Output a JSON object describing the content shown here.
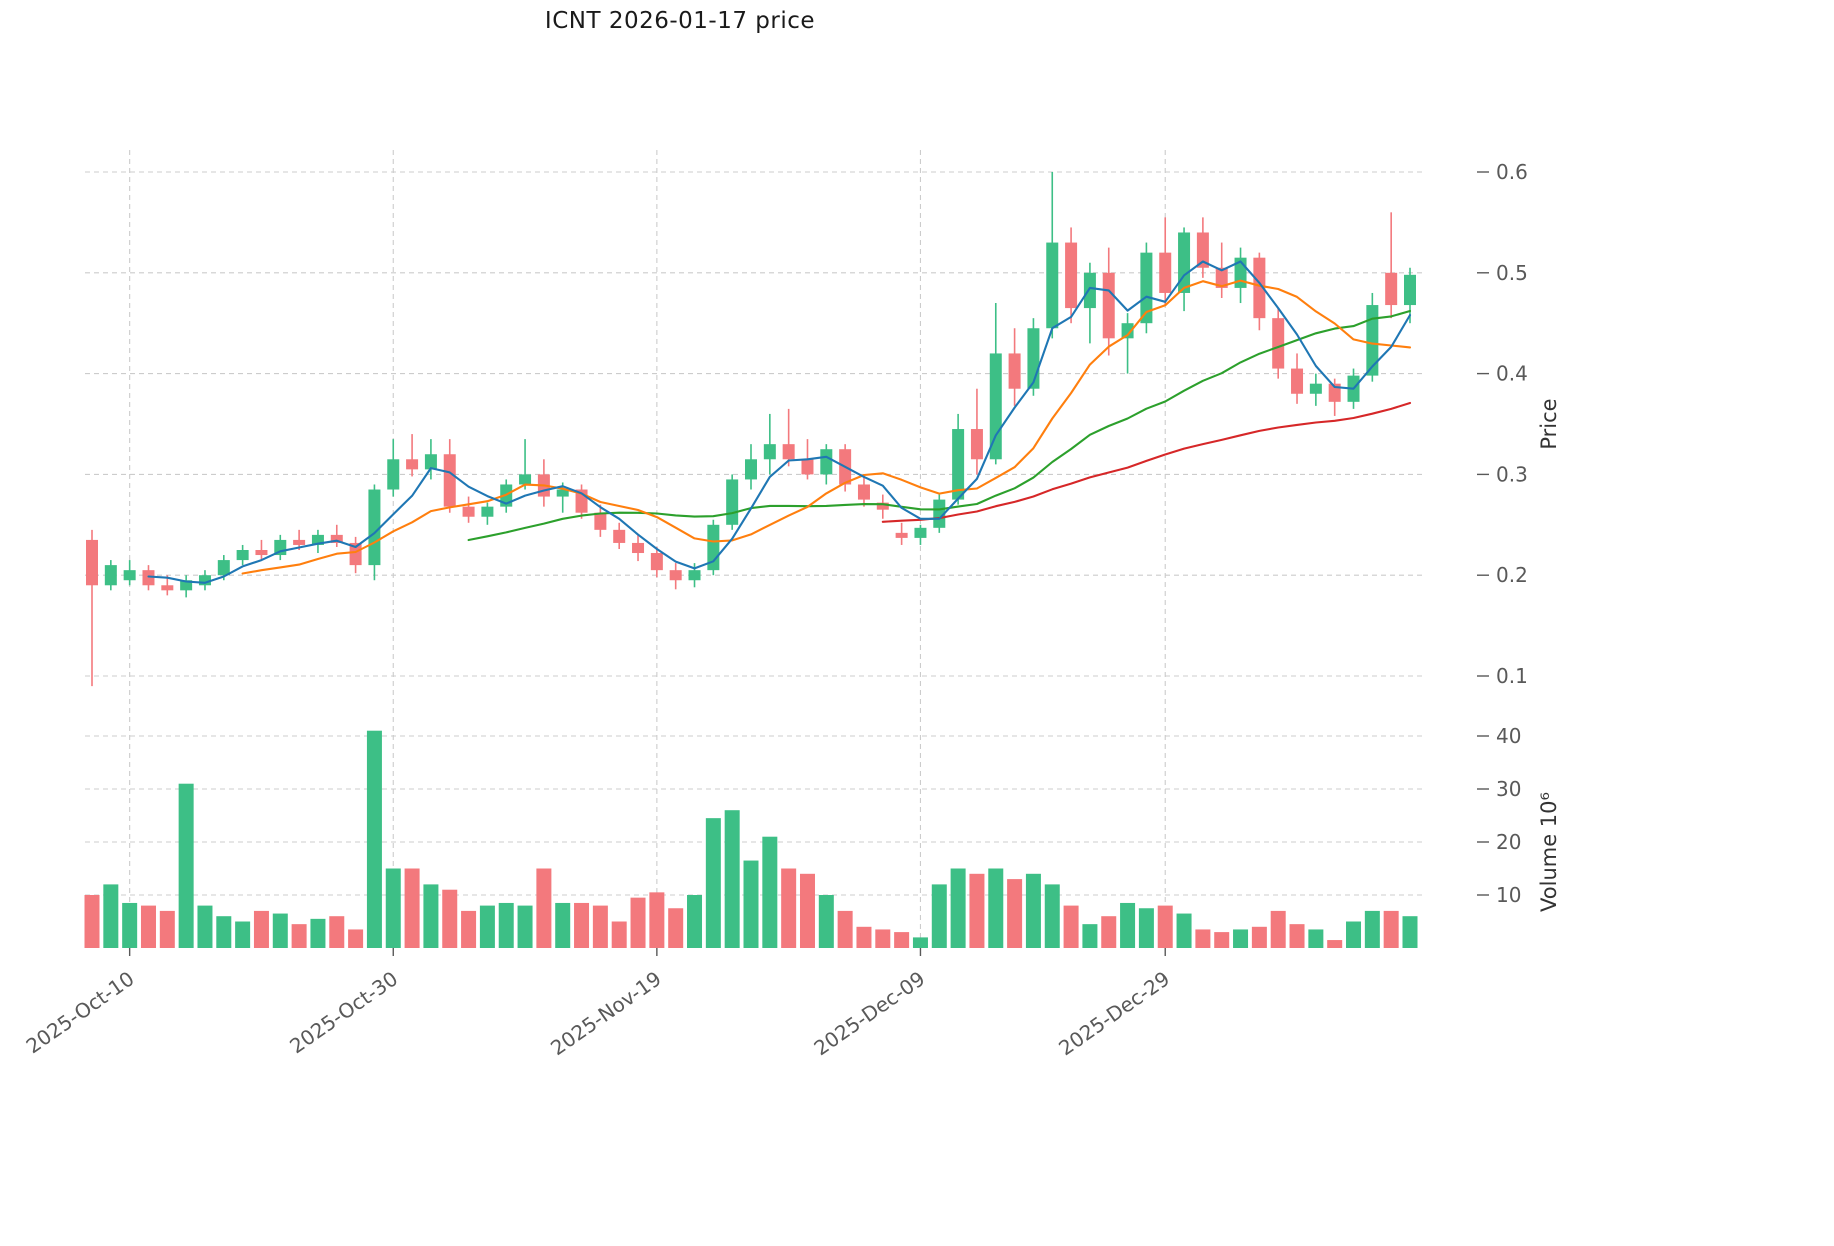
{
  "chart_data": {
    "type": "candlestick",
    "title": "ICNT  2026-01-17  price",
    "price_axis_label": "Price",
    "volume_axis_label": "Volume  10⁶",
    "price_ticks": [
      0.1,
      0.2,
      0.3,
      0.4,
      0.5,
      0.6
    ],
    "volume_ticks": [
      10,
      20,
      30,
      40
    ],
    "x_ticks": [
      {
        "index": 2,
        "label": "2025-Oct-10"
      },
      {
        "index": 16,
        "label": "2025-Oct-30"
      },
      {
        "index": 30,
        "label": "2025-Nov-19"
      },
      {
        "index": 44,
        "label": "2025-Dec-09"
      },
      {
        "index": 57,
        "label": "2025-Dec-29"
      }
    ],
    "ylim_price": [
      0.075,
      0.63
    ],
    "ylim_volume": [
      0,
      45
    ],
    "grid": true,
    "legend_position": "none",
    "moving_averages": [
      {
        "period": 4,
        "color": "#1f77b4"
      },
      {
        "period": 9,
        "color": "#ff7f0e"
      },
      {
        "period": 21,
        "color": "#2ca02c"
      },
      {
        "period": 43,
        "color": "#d62728"
      }
    ],
    "colors": {
      "up": "#3dbf86",
      "down": "#f3797d",
      "grid": "#cccccc",
      "tick_text": "#595959",
      "axis_label_text": "#333333"
    },
    "dates": [
      "2025-10-08",
      "2025-10-09",
      "2025-10-10",
      "2025-10-13",
      "2025-10-14",
      "2025-10-15",
      "2025-10-16",
      "2025-10-17",
      "2025-10-20",
      "2025-10-21",
      "2025-10-22",
      "2025-10-23",
      "2025-10-24",
      "2025-10-27",
      "2025-10-28",
      "2025-10-29",
      "2025-10-30",
      "2025-10-31",
      "2025-11-03",
      "2025-11-04",
      "2025-11-05",
      "2025-11-06",
      "2025-11-07",
      "2025-11-10",
      "2025-11-11",
      "2025-11-12",
      "2025-11-13",
      "2025-11-14",
      "2025-11-17",
      "2025-11-18",
      "2025-11-19",
      "2025-11-20",
      "2025-11-21",
      "2025-11-24",
      "2025-11-25",
      "2025-11-26",
      "2025-11-27",
      "2025-11-28",
      "2025-12-01",
      "2025-12-02",
      "2025-12-03",
      "2025-12-04",
      "2025-12-05",
      "2025-12-08",
      "2025-12-09",
      "2025-12-10",
      "2025-12-11",
      "2025-12-12",
      "2025-12-15",
      "2025-12-16",
      "2025-12-17",
      "2025-12-18",
      "2025-12-19",
      "2025-12-22",
      "2025-12-23",
      "2025-12-24",
      "2025-12-26",
      "2025-12-29",
      "2025-12-30",
      "2025-12-31",
      "2026-01-02",
      "2026-01-05",
      "2026-01-06",
      "2026-01-07",
      "2026-01-08",
      "2026-01-09",
      "2026-01-12",
      "2026-01-13",
      "2026-01-14",
      "2026-01-15",
      "2026-01-16"
    ],
    "open": [
      0.235,
      0.19,
      0.195,
      0.205,
      0.19,
      0.185,
      0.19,
      0.2,
      0.215,
      0.225,
      0.22,
      0.235,
      0.23,
      0.24,
      0.232,
      0.21,
      0.285,
      0.315,
      0.305,
      0.32,
      0.268,
      0.258,
      0.268,
      0.29,
      0.3,
      0.278,
      0.285,
      0.262,
      0.245,
      0.232,
      0.222,
      0.205,
      0.195,
      0.205,
      0.25,
      0.295,
      0.315,
      0.33,
      0.315,
      0.3,
      0.325,
      0.29,
      0.272,
      0.242,
      0.237,
      0.247,
      0.275,
      0.345,
      0.315,
      0.42,
      0.385,
      0.445,
      0.53,
      0.465,
      0.5,
      0.435,
      0.45,
      0.52,
      0.48,
      0.54,
      0.505,
      0.485,
      0.515,
      0.455,
      0.405,
      0.38,
      0.39,
      0.372,
      0.398,
      0.5,
      0.468
    ],
    "high": [
      0.245,
      0.215,
      0.215,
      0.21,
      0.2,
      0.2,
      0.205,
      0.22,
      0.23,
      0.235,
      0.24,
      0.245,
      0.245,
      0.25,
      0.238,
      0.29,
      0.335,
      0.34,
      0.335,
      0.335,
      0.278,
      0.272,
      0.295,
      0.335,
      0.315,
      0.292,
      0.29,
      0.27,
      0.252,
      0.24,
      0.228,
      0.212,
      0.212,
      0.255,
      0.3,
      0.33,
      0.36,
      0.365,
      0.335,
      0.33,
      0.33,
      0.3,
      0.28,
      0.252,
      0.25,
      0.28,
      0.36,
      0.385,
      0.47,
      0.445,
      0.455,
      0.6,
      0.545,
      0.51,
      0.525,
      0.46,
      0.53,
      0.555,
      0.545,
      0.555,
      0.53,
      0.525,
      0.52,
      0.465,
      0.42,
      0.4,
      0.395,
      0.405,
      0.48,
      0.56,
      0.505
    ],
    "low": [
      0.09,
      0.185,
      0.19,
      0.185,
      0.18,
      0.178,
      0.185,
      0.195,
      0.21,
      0.215,
      0.215,
      0.225,
      0.222,
      0.228,
      0.202,
      0.195,
      0.278,
      0.298,
      0.295,
      0.262,
      0.252,
      0.25,
      0.262,
      0.285,
      0.268,
      0.262,
      0.256,
      0.238,
      0.226,
      0.214,
      0.198,
      0.186,
      0.188,
      0.2,
      0.245,
      0.285,
      0.3,
      0.308,
      0.295,
      0.29,
      0.283,
      0.268,
      0.256,
      0.23,
      0.23,
      0.242,
      0.27,
      0.3,
      0.31,
      0.368,
      0.378,
      0.435,
      0.45,
      0.43,
      0.418,
      0.4,
      0.44,
      0.468,
      0.462,
      0.495,
      0.475,
      0.47,
      0.443,
      0.395,
      0.37,
      0.368,
      0.358,
      0.365,
      0.392,
      0.455,
      0.45
    ],
    "close": [
      0.19,
      0.21,
      0.205,
      0.19,
      0.185,
      0.195,
      0.2,
      0.215,
      0.225,
      0.22,
      0.235,
      0.23,
      0.24,
      0.232,
      0.21,
      0.285,
      0.315,
      0.305,
      0.32,
      0.268,
      0.258,
      0.268,
      0.29,
      0.3,
      0.278,
      0.285,
      0.262,
      0.245,
      0.232,
      0.222,
      0.205,
      0.195,
      0.205,
      0.25,
      0.295,
      0.315,
      0.33,
      0.315,
      0.3,
      0.325,
      0.29,
      0.275,
      0.265,
      0.237,
      0.247,
      0.275,
      0.345,
      0.315,
      0.42,
      0.385,
      0.445,
      0.53,
      0.465,
      0.5,
      0.435,
      0.45,
      0.52,
      0.48,
      0.54,
      0.505,
      0.485,
      0.515,
      0.455,
      0.405,
      0.38,
      0.39,
      0.372,
      0.398,
      0.468,
      0.468,
      0.498
    ],
    "volume_millions": [
      10.0,
      12.0,
      8.5,
      8.0,
      7.0,
      31.0,
      8.0,
      6.0,
      5.0,
      7.0,
      6.5,
      4.5,
      5.5,
      6.0,
      3.5,
      41.0,
      15.0,
      15.0,
      12.0,
      11.0,
      7.0,
      8.0,
      8.5,
      8.0,
      15.0,
      8.5,
      8.5,
      8.0,
      5.0,
      9.5,
      10.5,
      7.5,
      10.0,
      24.5,
      26.0,
      16.5,
      21.0,
      15.0,
      14.0,
      10.0,
      7.0,
      4.0,
      3.5,
      3.0,
      2.0,
      12.0,
      15.0,
      14.0,
      15.0,
      13.0,
      14.0,
      12.0,
      8.0,
      4.5,
      6.0,
      8.5,
      7.5,
      8.0,
      6.5,
      3.5,
      3.0,
      3.5,
      4.0,
      7.0,
      4.5,
      3.5,
      1.5,
      5.0,
      7.0,
      7.0,
      6.0
    ]
  }
}
